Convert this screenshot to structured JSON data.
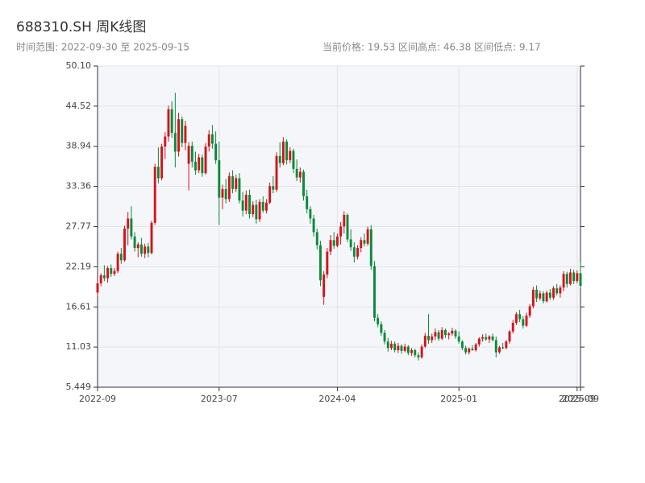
{
  "chart_data": {
    "type": "candlestick",
    "title": "688310.SH 周K线图",
    "subtitle": [
      "时间范围: 2022-09-30 至 2025-09-15",
      "当前价格: 19.53 区间高点: 46.38 区间低点: 9.17"
    ],
    "up_color": "#d4141c",
    "down_color": "#0b8a3b",
    "grid": true,
    "ylim": [
      5.449,
      50.1
    ],
    "yticks": [
      5.449,
      11.03,
      16.61,
      22.19,
      27.77,
      33.36,
      38.94,
      44.52,
      {
        "value": 50.1,
        "label": "50.10"
      }
    ],
    "categories": [
      "2022-09",
      null,
      null,
      null,
      null,
      null,
      null,
      null,
      null,
      null,
      null,
      null,
      null,
      null,
      null,
      null,
      null,
      null,
      null,
      null,
      null,
      null,
      null,
      null,
      null,
      null,
      null,
      null,
      null,
      null,
      null,
      null,
      null,
      null,
      null,
      null,
      "2023-07",
      null,
      null,
      null,
      null,
      null,
      null,
      null,
      null,
      null,
      null,
      null,
      null,
      null,
      null,
      null,
      null,
      null,
      null,
      null,
      null,
      null,
      null,
      null,
      null,
      null,
      null,
      null,
      null,
      null,
      null,
      null,
      null,
      null,
      null,
      "2024-04",
      null,
      null,
      null,
      null,
      null,
      null,
      null,
      null,
      null,
      null,
      null,
      null,
      null,
      null,
      null,
      null,
      null,
      null,
      null,
      null,
      null,
      null,
      null,
      null,
      null,
      null,
      null,
      null,
      null,
      null,
      null,
      null,
      null,
      null,
      null,
      "2025-01",
      null,
      null,
      null,
      null,
      null,
      null,
      null,
      null,
      null,
      null,
      null,
      null,
      null,
      null,
      null,
      null,
      null,
      null,
      null,
      null,
      null,
      null,
      null,
      null,
      null,
      null,
      null,
      null,
      null,
      null,
      null,
      null,
      null,
      null,
      "2025-09",
      "2025-09"
    ],
    "ohlc": [
      [
        18.6,
        20.2,
        18.1,
        19.9
      ],
      [
        19.9,
        21.3,
        19.5,
        21.0
      ],
      [
        21.0,
        22.4,
        20.2,
        20.6
      ],
      [
        20.6,
        22.3,
        20.0,
        22.0
      ],
      [
        22.0,
        22.5,
        20.8,
        21.2
      ],
      [
        21.2,
        22.0,
        20.9,
        21.6
      ],
      [
        21.6,
        24.3,
        21.3,
        24.0
      ],
      [
        24.0,
        24.8,
        22.6,
        23.1
      ],
      [
        23.1,
        27.9,
        22.9,
        27.5
      ],
      [
        27.5,
        29.8,
        25.2,
        28.9
      ],
      [
        28.9,
        30.6,
        26.0,
        26.4
      ],
      [
        26.4,
        27.0,
        24.3,
        24.8
      ],
      [
        24.8,
        25.6,
        23.5,
        25.3
      ],
      [
        25.3,
        26.2,
        23.6,
        24.0
      ],
      [
        24.0,
        25.4,
        23.4,
        25.0
      ],
      [
        25.0,
        25.5,
        23.5,
        24.1
      ],
      [
        24.1,
        28.6,
        23.9,
        28.3
      ],
      [
        28.3,
        36.5,
        28.0,
        36.1
      ],
      [
        36.1,
        38.8,
        33.8,
        34.5
      ],
      [
        34.5,
        39.3,
        34.2,
        38.9
      ],
      [
        38.9,
        40.9,
        37.2,
        40.3
      ],
      [
        40.3,
        44.6,
        39.6,
        44.1
      ],
      [
        44.1,
        45.2,
        40.1,
        40.8
      ],
      [
        40.8,
        46.38,
        36.0,
        38.2
      ],
      [
        38.2,
        43.6,
        37.5,
        42.7
      ],
      [
        42.7,
        43.1,
        38.8,
        39.4
      ],
      [
        39.4,
        42.5,
        38.4,
        41.8
      ],
      [
        36.5,
        39.5,
        32.8,
        39.0
      ],
      [
        39.0,
        39.6,
        36.0,
        36.8
      ],
      [
        36.8,
        38.2,
        35.0,
        35.6
      ],
      [
        35.6,
        37.9,
        35.2,
        37.4
      ],
      [
        37.4,
        37.8,
        34.7,
        35.2
      ],
      [
        35.2,
        39.4,
        35.0,
        38.9
      ],
      [
        38.9,
        41.2,
        38.2,
        40.6
      ],
      [
        40.6,
        41.9,
        38.6,
        39.3
      ],
      [
        39.3,
        41.0,
        36.5,
        37.0
      ],
      [
        37.0,
        39.6,
        28.0,
        31.8
      ],
      [
        31.8,
        33.6,
        30.2,
        33.0
      ],
      [
        33.0,
        34.4,
        31.0,
        31.6
      ],
      [
        31.6,
        35.3,
        31.2,
        34.8
      ],
      [
        34.8,
        35.6,
        32.4,
        33.0
      ],
      [
        33.0,
        35.0,
        32.6,
        34.5
      ],
      [
        34.5,
        35.2,
        31.0,
        31.4
      ],
      [
        31.4,
        32.6,
        29.2,
        30.0
      ],
      [
        30.0,
        32.8,
        29.5,
        32.2
      ],
      [
        32.2,
        32.9,
        28.9,
        29.5
      ],
      [
        29.5,
        31.3,
        29.1,
        30.8
      ],
      [
        30.8,
        31.5,
        28.2,
        28.8
      ],
      [
        28.8,
        31.6,
        28.4,
        31.2
      ],
      [
        31.2,
        32.0,
        29.7,
        30.0
      ],
      [
        30.0,
        31.6,
        29.6,
        31.1
      ],
      [
        31.1,
        33.9,
        30.9,
        33.4
      ],
      [
        33.4,
        34.8,
        32.4,
        32.9
      ],
      [
        32.9,
        38.1,
        32.6,
        37.6
      ],
      [
        37.6,
        39.5,
        36.0,
        36.6
      ],
      [
        36.6,
        40.2,
        36.3,
        39.6
      ],
      [
        39.6,
        39.9,
        36.4,
        37.0
      ],
      [
        37.0,
        38.8,
        36.6,
        38.3
      ],
      [
        38.3,
        38.6,
        35.2,
        35.8
      ],
      [
        35.8,
        37.1,
        34.1,
        34.6
      ],
      [
        34.6,
        36.0,
        33.9,
        35.4
      ],
      [
        35.4,
        35.7,
        31.4,
        32.0
      ],
      [
        32.0,
        32.9,
        29.6,
        30.2
      ],
      [
        30.2,
        30.6,
        28.2,
        28.9
      ],
      [
        28.9,
        29.4,
        26.4,
        27.0
      ],
      [
        27.0,
        27.5,
        24.6,
        25.2
      ],
      [
        25.2,
        25.8,
        19.5,
        20.3
      ],
      [
        18.0,
        21.6,
        16.9,
        21.1
      ],
      [
        21.1,
        24.8,
        20.6,
        24.3
      ],
      [
        24.3,
        26.6,
        23.8,
        25.9
      ],
      [
        25.9,
        27.0,
        24.7,
        25.1
      ],
      [
        25.1,
        26.8,
        24.9,
        26.4
      ],
      [
        26.4,
        28.4,
        25.3,
        27.8
      ],
      [
        27.8,
        29.9,
        26.8,
        29.4
      ],
      [
        29.4,
        29.6,
        25.6,
        26.0
      ],
      [
        26.0,
        27.4,
        24.4,
        24.9
      ],
      [
        24.9,
        25.6,
        22.8,
        23.6
      ],
      [
        23.6,
        25.2,
        23.2,
        24.8
      ],
      [
        24.8,
        26.3,
        24.2,
        25.9
      ],
      [
        25.9,
        26.8,
        25.0,
        25.4
      ],
      [
        25.4,
        27.8,
        25.1,
        27.4
      ],
      [
        27.4,
        28.0,
        21.8,
        22.3
      ],
      [
        22.3,
        23.0,
        14.6,
        15.1
      ],
      [
        15.1,
        15.6,
        13.8,
        14.2
      ],
      [
        14.2,
        14.6,
        12.6,
        13.0
      ],
      [
        13.0,
        13.4,
        11.4,
        11.8
      ],
      [
        11.8,
        12.3,
        10.4,
        10.9
      ],
      [
        10.9,
        11.9,
        10.6,
        11.5
      ],
      [
        11.5,
        11.8,
        10.3,
        10.6
      ],
      [
        10.6,
        11.6,
        10.2,
        11.2
      ],
      [
        11.2,
        11.4,
        10.1,
        10.5
      ],
      [
        10.5,
        11.5,
        10.3,
        11.1
      ],
      [
        11.1,
        11.3,
        9.9,
        10.2
      ],
      [
        10.2,
        10.9,
        9.8,
        10.6
      ],
      [
        10.6,
        10.8,
        9.6,
        9.9
      ],
      [
        9.9,
        10.3,
        9.17,
        9.6
      ],
      [
        9.6,
        11.4,
        9.4,
        11.1
      ],
      [
        11.1,
        13.0,
        10.9,
        12.6
      ],
      [
        12.6,
        15.6,
        11.5,
        12.0
      ],
      [
        12.0,
        12.9,
        11.6,
        12.5
      ],
      [
        12.5,
        13.6,
        12.0,
        13.1
      ],
      [
        13.1,
        13.4,
        11.9,
        12.2
      ],
      [
        12.2,
        13.8,
        12.0,
        13.4
      ],
      [
        13.4,
        13.6,
        12.3,
        12.7
      ],
      [
        12.7,
        13.1,
        12.1,
        12.9
      ],
      [
        12.9,
        13.7,
        12.6,
        13.3
      ],
      [
        13.3,
        13.5,
        12.2,
        12.5
      ],
      [
        12.5,
        13.2,
        11.5,
        11.8
      ],
      [
        11.8,
        12.0,
        10.6,
        10.9
      ],
      [
        10.9,
        11.2,
        10.0,
        10.3
      ],
      [
        10.3,
        11.0,
        10.0,
        10.8
      ],
      [
        10.8,
        11.3,
        10.5,
        10.6
      ],
      [
        10.6,
        11.6,
        10.4,
        11.4
      ],
      [
        11.4,
        12.4,
        11.1,
        12.2
      ],
      [
        12.2,
        12.8,
        11.8,
        12.4
      ],
      [
        12.4,
        12.9,
        11.9,
        12.1
      ],
      [
        12.1,
        12.7,
        11.6,
        12.5
      ],
      [
        12.5,
        12.9,
        11.8,
        12.0
      ],
      [
        12.0,
        12.5,
        9.6,
        10.3
      ],
      [
        10.3,
        11.2,
        10.1,
        11.0
      ],
      [
        11.0,
        11.6,
        10.7,
        10.9
      ],
      [
        10.9,
        12.0,
        10.7,
        11.8
      ],
      [
        11.8,
        13.4,
        11.5,
        13.2
      ],
      [
        13.2,
        14.8,
        12.9,
        14.4
      ],
      [
        14.4,
        15.9,
        14.1,
        15.6
      ],
      [
        15.6,
        16.2,
        14.5,
        14.9
      ],
      [
        14.9,
        15.3,
        13.6,
        14.0
      ],
      [
        14.0,
        15.8,
        13.8,
        15.4
      ],
      [
        15.4,
        17.0,
        15.1,
        16.7
      ],
      [
        16.7,
        19.4,
        16.4,
        19.0
      ],
      [
        19.0,
        19.6,
        17.3,
        17.8
      ],
      [
        17.8,
        18.9,
        17.5,
        18.5
      ],
      [
        18.5,
        18.8,
        17.1,
        17.4
      ],
      [
        17.4,
        18.9,
        17.2,
        18.6
      ],
      [
        18.6,
        19.1,
        17.6,
        17.9
      ],
      [
        17.9,
        19.5,
        17.6,
        19.2
      ],
      [
        19.2,
        19.8,
        18.2,
        18.5
      ],
      [
        18.5,
        19.6,
        17.9,
        19.3
      ],
      [
        19.3,
        21.6,
        18.8,
        21.2
      ],
      [
        21.2,
        21.5,
        19.3,
        19.8
      ],
      [
        19.8,
        21.9,
        19.6,
        21.4
      ],
      [
        21.4,
        21.8,
        19.8,
        20.2
      ],
      [
        20.2,
        21.7,
        19.9,
        21.3
      ],
      [
        21.3,
        22.8,
        19.2,
        19.53
      ]
    ]
  }
}
